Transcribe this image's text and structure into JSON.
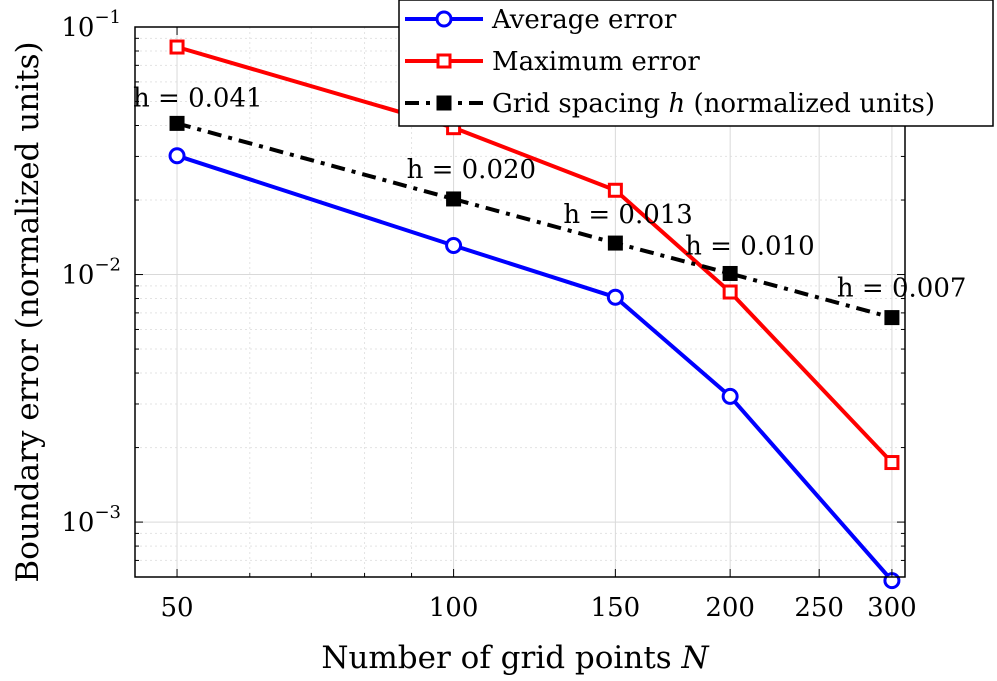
{
  "chart_data": {
    "type": "line",
    "x_scale": "log",
    "y_scale": "log",
    "xlabel": "Number of grid points",
    "xlabel_var": "N",
    "ylabel": "Boundary error (normalized units)",
    "xlim": [
      45,
      310
    ],
    "ylim": [
      0.0006,
      0.1
    ],
    "x_ticks": [
      50,
      100,
      150,
      200,
      250,
      300
    ],
    "x_tick_labels": [
      "50",
      "100",
      "150",
      "200",
      "250",
      "300"
    ],
    "y_ticks": [
      0.001,
      0.01,
      0.1
    ],
    "y_tick_labels": [
      {
        "base": "10",
        "exp": "−3"
      },
      {
        "base": "10",
        "exp": "−2"
      },
      {
        "base": "10",
        "exp": "−1"
      }
    ],
    "grid": true,
    "legend_position": "top-right",
    "series": [
      {
        "name": "Average error",
        "color": "#0000ff",
        "marker": "circle",
        "line_style": "solid",
        "x": [
          50,
          100,
          150,
          200,
          300
        ],
        "y": [
          0.0302,
          0.0131,
          0.0081,
          0.00322,
          0.00058
        ]
      },
      {
        "name": "Maximum error",
        "color": "#ff0000",
        "marker": "square",
        "line_style": "solid",
        "x": [
          50,
          100,
          150,
          200,
          300
        ],
        "y": [
          0.083,
          0.0392,
          0.0219,
          0.0085,
          0.00174
        ]
      },
      {
        "name": "Grid spacing",
        "name_var": "h",
        "name_suffix": "(normalized units)",
        "color": "#000000",
        "marker": "filled-square",
        "line_style": "dash-dot",
        "x": [
          50,
          100,
          150,
          200,
          300
        ],
        "y": [
          0.0408,
          0.0202,
          0.0134,
          0.0101,
          0.0067
        ]
      }
    ],
    "annotations": [
      {
        "text": "h = 0.041",
        "x": 50,
        "y": 0.0408
      },
      {
        "text": "h = 0.020",
        "x": 100,
        "y": 0.0202
      },
      {
        "text": "h = 0.013",
        "x": 150,
        "y": 0.0134
      },
      {
        "text": "h = 0.010",
        "x": 200,
        "y": 0.0101
      },
      {
        "text": "h = 0.007",
        "x": 300,
        "y": 0.0067
      }
    ]
  }
}
